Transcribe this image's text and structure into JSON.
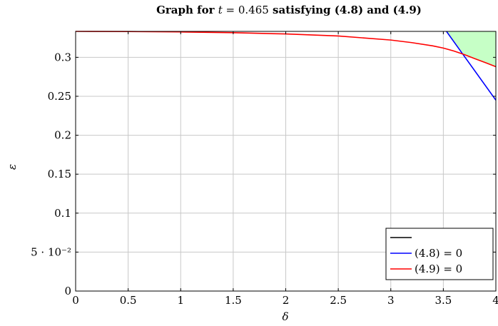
{
  "chart_data": {
    "type": "line",
    "title_prefix": "Graph for ",
    "title_var": "t",
    "title_eq": " = 0.465",
    "title_suffix": " satisfying (4.8) and (4.9)",
    "xlabel": "δ",
    "ylabel": "ε",
    "xlim": [
      0,
      4
    ],
    "ylim": [
      0,
      0.3333
    ],
    "x_ticks": [
      0,
      0.5,
      1,
      1.5,
      2,
      2.5,
      3,
      3.5,
      4
    ],
    "x_tick_labels": [
      "0",
      "0.5",
      "1",
      "1.5",
      "2",
      "2.5",
      "3",
      "3.5",
      "4"
    ],
    "y_ticks": [
      0,
      0.05,
      0.1,
      0.15,
      0.2,
      0.25,
      0.3
    ],
    "y_tick_labels": [
      "0",
      "5 · 10⁻²",
      "0.1",
      "0.15",
      "0.2",
      "0.25",
      "0.3"
    ],
    "grid": true,
    "legend_position": "bottom-right",
    "series": [
      {
        "name": "",
        "color": "#000000",
        "x": [],
        "y": []
      },
      {
        "name": "(4.8) = 0",
        "color": "#0000ff",
        "x": [
          3.53,
          4.0
        ],
        "y": [
          0.3333,
          0.245
        ]
      },
      {
        "name": "(4.9) = 0",
        "color": "#ff0000",
        "x": [
          0,
          0.5,
          1.0,
          1.5,
          2.0,
          2.5,
          3.0,
          3.2,
          3.4,
          3.5,
          3.6,
          3.7,
          3.8,
          3.9,
          4.0
        ],
        "y": [
          0.3333,
          0.3331,
          0.3326,
          0.3316,
          0.33,
          0.3274,
          0.3222,
          0.3189,
          0.3147,
          0.3119,
          0.3081,
          0.3035,
          0.2983,
          0.2932,
          0.288
        ]
      }
    ],
    "shaded_region": {
      "color": "#c6ffc6",
      "x": [
        3.53,
        4.0,
        4.0,
        3.7
      ],
      "y": [
        0.3333,
        0.3333,
        0.288,
        0.3035
      ]
    }
  }
}
